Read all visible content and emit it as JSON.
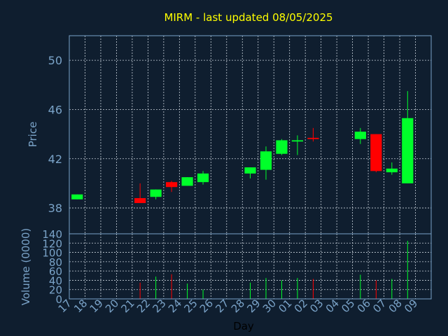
{
  "chart_data": {
    "type": "candlestick",
    "title": "MIRM - last updated 08/05/2025",
    "xlabel": "Day",
    "price_panel": {
      "ylabel": "Price",
      "ylim": [
        35.9,
        52.0
      ],
      "yticks": [
        "38",
        "42",
        "46",
        "50"
      ]
    },
    "volume_panel": {
      "ylabel": "Volume (0000)",
      "ylim": [
        0,
        140
      ],
      "yticks": [
        "0",
        "20",
        "40",
        "60",
        "80",
        "100",
        "120",
        "140"
      ]
    },
    "x_labels": [
      "17",
      "18",
      "19",
      "20",
      "21",
      "22",
      "23",
      "24",
      "25",
      "26",
      "27",
      "28",
      "29",
      "30",
      "01",
      "02",
      "03",
      "04",
      "05",
      "06",
      "07",
      "08",
      "09"
    ],
    "candles": [
      {
        "day": "17",
        "open": 38.7,
        "high": 39.1,
        "low": 38.7,
        "close": 39.1,
        "volume": 0
      },
      {
        "day": "21",
        "open": 38.8,
        "high": 40.0,
        "low": 38.4,
        "close": 38.4,
        "volume": 35
      },
      {
        "day": "22",
        "open": 38.9,
        "high": 39.5,
        "low": 38.7,
        "close": 39.5,
        "volume": 48
      },
      {
        "day": "23",
        "open": 40.1,
        "high": 40.2,
        "low": 39.3,
        "close": 39.7,
        "volume": 53
      },
      {
        "day": "24",
        "open": 39.8,
        "high": 40.5,
        "low": 39.8,
        "close": 40.5,
        "volume": 33
      },
      {
        "day": "25",
        "open": 40.1,
        "high": 41.0,
        "low": 39.9,
        "close": 40.8,
        "volume": 20
      },
      {
        "day": "28",
        "open": 40.8,
        "high": 41.3,
        "low": 40.4,
        "close": 41.3,
        "volume": 35
      },
      {
        "day": "29",
        "open": 41.1,
        "high": 43.0,
        "low": 40.3,
        "close": 42.6,
        "volume": 45
      },
      {
        "day": "30",
        "open": 42.4,
        "high": 43.6,
        "low": 42.3,
        "close": 43.5,
        "volume": 40
      },
      {
        "day": "01",
        "open": 43.4,
        "high": 43.9,
        "low": 42.3,
        "close": 43.5,
        "volume": 45
      },
      {
        "day": "02",
        "open": 43.7,
        "high": 44.5,
        "low": 43.4,
        "close": 43.6,
        "volume": 43
      },
      {
        "day": "05",
        "open": 43.6,
        "high": 44.5,
        "low": 43.2,
        "close": 44.2,
        "volume": 52
      },
      {
        "day": "06",
        "open": 44.0,
        "high": 44.0,
        "low": 40.9,
        "close": 41.0,
        "volume": 40
      },
      {
        "day": "07",
        "open": 40.9,
        "high": 41.7,
        "low": 40.7,
        "close": 41.2,
        "volume": 43
      },
      {
        "day": "08",
        "open": 40.0,
        "high": 47.5,
        "low": 40.0,
        "close": 45.3,
        "volume": 125
      }
    ],
    "colors": {
      "background": "#0f1e2f",
      "frame": "#7aa3c8",
      "grid": "#c7d0d9",
      "up": "#00ff2a",
      "down": "#ff0000",
      "title": "#ffff00",
      "axis_text": "#7aa3c8",
      "xlabel": "#000000"
    },
    "grid": true
  }
}
